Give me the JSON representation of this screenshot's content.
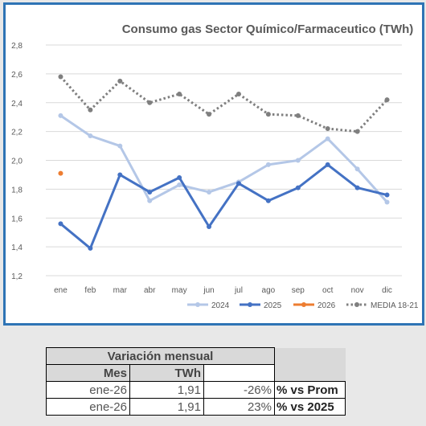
{
  "chart_data": {
    "type": "line",
    "title": "Consumo gas Sector Químico/Farmaceutico (TWh)",
    "categories": [
      "ene",
      "feb",
      "mar",
      "abr",
      "may",
      "jun",
      "jul",
      "ago",
      "sep",
      "oct",
      "nov",
      "dic"
    ],
    "ylim": [
      1.2,
      2.8
    ],
    "yticks": [
      "1,2",
      "1,4",
      "1,6",
      "1,8",
      "2,0",
      "2,2",
      "2,4",
      "2,6",
      "2,8"
    ],
    "grid": true,
    "legend_position": "bottom-right",
    "series": [
      {
        "name": "2024",
        "color": "#b4c7e7",
        "style": "solid",
        "values": [
          2.31,
          2.17,
          2.1,
          1.72,
          1.83,
          1.78,
          1.85,
          1.97,
          2.0,
          2.15,
          1.94,
          1.71
        ]
      },
      {
        "name": "2025",
        "color": "#4472c4",
        "style": "solid",
        "values": [
          1.56,
          1.39,
          1.9,
          1.78,
          1.88,
          1.54,
          1.84,
          1.72,
          1.81,
          1.97,
          1.81,
          1.76
        ]
      },
      {
        "name": "2026",
        "color": "#ed7d31",
        "style": "solid",
        "values": [
          1.91,
          null,
          null,
          null,
          null,
          null,
          null,
          null,
          null,
          null,
          null,
          null
        ]
      },
      {
        "name": "MEDIA 18-21",
        "color": "#7f7f7f",
        "style": "dotted",
        "values": [
          2.58,
          2.35,
          2.55,
          2.4,
          2.46,
          2.32,
          2.46,
          2.32,
          2.31,
          2.22,
          2.2,
          2.42
        ]
      }
    ]
  },
  "table": {
    "title": "Variación mensual",
    "col_mes": "Mes",
    "col_twh": "TWh",
    "rows": [
      {
        "mes": "ene-26",
        "twh": "1,91",
        "pct": "-26%",
        "label": "% vs Prom"
      },
      {
        "mes": "ene-26",
        "twh": "1,91",
        "pct": "23%",
        "label": "% vs 2025"
      }
    ]
  }
}
